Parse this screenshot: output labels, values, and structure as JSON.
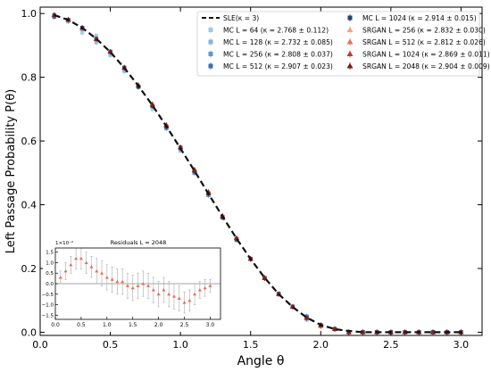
{
  "chart_data": [
    {
      "type": "scatter",
      "xlabel": "Angle θ",
      "ylabel": "Left Passage Probability P(θ)",
      "xlim": [
        0.0,
        3.15
      ],
      "ylim": [
        -0.01,
        1.02
      ],
      "xticks": [
        "0.0",
        "0.5",
        "1.0",
        "1.5",
        "2.0",
        "2.5",
        "3.0"
      ],
      "yticks": [
        "0.0",
        "0.2",
        "0.4",
        "0.6",
        "0.8",
        "1.0"
      ],
      "grid": false,
      "legend_position": "top-right",
      "x": [
        0.1,
        0.2,
        0.3,
        0.4,
        0.5,
        0.6,
        0.7,
        0.8,
        0.9,
        1.0,
        1.1,
        1.2,
        1.3,
        1.4,
        1.5,
        1.6,
        1.7,
        1.8,
        1.9,
        2.0,
        2.1,
        2.2,
        2.3,
        2.4,
        2.5,
        2.6,
        2.7,
        2.8,
        2.9,
        3.0
      ],
      "reference": {
        "name": "SLE(κ = 3)",
        "color": "#111111",
        "values": [
          0.995,
          0.98,
          0.955,
          0.921,
          0.879,
          0.829,
          0.773,
          0.712,
          0.646,
          0.577,
          0.506,
          0.434,
          0.363,
          0.294,
          0.23,
          0.171,
          0.12,
          0.079,
          0.046,
          0.023,
          0.01,
          0.004,
          0.0,
          0.0,
          0.0,
          0.0,
          0.0,
          0.0,
          0.0,
          0.0
        ]
      },
      "series": [
        {
          "name": "MC L = 64 (κ = 2.768 ± 0.112)",
          "color": "#9ec9ea",
          "values": [
            0.99,
            0.98,
            0.94,
            0.93,
            0.88,
            0.82,
            0.77,
            0.7,
            0.64,
            0.58,
            0.5,
            0.43,
            0.36,
            0.29,
            0.23,
            0.17,
            0.12,
            0.08,
            0.05,
            0.02,
            0.01,
            0.0,
            0.0,
            0.0,
            0.0,
            0.0,
            0.0,
            0.0,
            0.0,
            0.0
          ]
        },
        {
          "name": "MC L = 128 (κ = 2.732 ± 0.085)",
          "color": "#83b5df",
          "values": [
            0.99,
            0.975,
            0.95,
            0.91,
            0.87,
            0.82,
            0.77,
            0.71,
            0.64,
            0.57,
            0.5,
            0.43,
            0.36,
            0.29,
            0.23,
            0.17,
            0.12,
            0.08,
            0.04,
            0.02,
            0.01,
            0.0,
            0.0,
            0.0,
            0.0,
            0.0,
            0.0,
            0.0,
            0.0,
            0.0
          ]
        },
        {
          "name": "MC L = 256 (κ = 2.808 ± 0.037)",
          "color": "#5e97cc",
          "values": [
            0.99,
            0.98,
            0.955,
            0.92,
            0.88,
            0.83,
            0.77,
            0.71,
            0.64,
            0.58,
            0.5,
            0.43,
            0.36,
            0.29,
            0.23,
            0.17,
            0.12,
            0.08,
            0.05,
            0.02,
            0.01,
            0.0,
            0.0,
            0.0,
            0.0,
            0.0,
            0.0,
            0.0,
            0.0,
            0.0
          ]
        },
        {
          "name": "MC L = 512 (κ = 2.907 ± 0.023)",
          "color": "#3a6fae",
          "values": [
            0.99,
            0.98,
            0.955,
            0.92,
            0.88,
            0.83,
            0.77,
            0.71,
            0.645,
            0.58,
            0.505,
            0.435,
            0.36,
            0.29,
            0.23,
            0.17,
            0.12,
            0.08,
            0.045,
            0.02,
            0.01,
            0.0,
            0.0,
            0.0,
            0.0,
            0.0,
            0.0,
            0.0,
            0.0,
            0.0
          ]
        },
        {
          "name": "MC L = 1024 (κ = 2.914 ± 0.015)",
          "color": "#23456f",
          "values": [
            0.995,
            0.98,
            0.955,
            0.92,
            0.88,
            0.83,
            0.77,
            0.71,
            0.645,
            0.577,
            0.505,
            0.435,
            0.362,
            0.293,
            0.23,
            0.17,
            0.12,
            0.08,
            0.046,
            0.023,
            0.01,
            0.0,
            0.0,
            0.0,
            0.0,
            0.0,
            0.0,
            0.0,
            0.0,
            0.0
          ]
        },
        {
          "name": "SRGAN L = 256 (κ = 2.832 ± 0.030)",
          "color": "#f2a58c",
          "values": [
            0.995,
            0.98,
            0.955,
            0.92,
            0.88,
            0.83,
            0.775,
            0.715,
            0.65,
            0.58,
            0.51,
            0.44,
            0.365,
            0.295,
            0.23,
            0.17,
            0.12,
            0.08,
            0.045,
            0.02,
            0.01,
            0.0,
            0.0,
            0.0,
            0.0,
            0.0,
            0.0,
            0.0,
            0.0,
            0.0
          ]
        },
        {
          "name": "SRGAN L = 512 (κ = 2.812 ± 0.026)",
          "color": "#e0705a",
          "values": [
            0.995,
            0.98,
            0.955,
            0.92,
            0.88,
            0.83,
            0.775,
            0.715,
            0.65,
            0.58,
            0.51,
            0.44,
            0.365,
            0.295,
            0.23,
            0.17,
            0.12,
            0.08,
            0.045,
            0.02,
            0.01,
            0.0,
            0.0,
            0.0,
            0.0,
            0.0,
            0.0,
            0.0,
            0.0,
            0.0
          ]
        },
        {
          "name": "SRGAN L = 1024 (κ = 2.869 ± 0.011)",
          "color": "#c0392b",
          "values": [
            0.995,
            0.98,
            0.955,
            0.92,
            0.88,
            0.83,
            0.775,
            0.715,
            0.65,
            0.58,
            0.51,
            0.44,
            0.365,
            0.295,
            0.23,
            0.17,
            0.12,
            0.08,
            0.045,
            0.02,
            0.01,
            0.0,
            0.0,
            0.0,
            0.0,
            0.0,
            0.0,
            0.0,
            0.0,
            0.0
          ]
        },
        {
          "name": "SRGAN L = 2048 (κ = 2.904 ± 0.009)",
          "color": "#7a1a14",
          "values": [
            0.995,
            0.98,
            0.955,
            0.92,
            0.88,
            0.83,
            0.775,
            0.714,
            0.648,
            0.58,
            0.508,
            0.437,
            0.364,
            0.295,
            0.23,
            0.17,
            0.12,
            0.08,
            0.045,
            0.022,
            0.01,
            0.0,
            0.0,
            0.0,
            0.0,
            0.0,
            0.0,
            0.0,
            0.0,
            0.0
          ]
        }
      ]
    },
    {
      "type": "scatter",
      "title": "Residuals L = 2048",
      "multiplier": "1×10⁻²",
      "xlim": [
        0.0,
        3.2
      ],
      "ylim": [
        -1.7,
        1.7
      ],
      "xticks": [
        "0.0",
        "0.5",
        "1.0",
        "1.5",
        "2.0",
        "2.5",
        "3.0"
      ],
      "yticks": [
        "1.5",
        "1.0",
        "0.5",
        "0.0",
        "−0.5",
        "−1.0",
        "−1.5"
      ],
      "x": [
        0.1,
        0.2,
        0.3,
        0.4,
        0.5,
        0.6,
        0.7,
        0.8,
        0.9,
        1.0,
        1.1,
        1.2,
        1.3,
        1.4,
        1.5,
        1.6,
        1.7,
        1.8,
        1.9,
        2.0,
        2.1,
        2.2,
        2.3,
        2.4,
        2.5,
        2.6,
        2.7,
        2.8,
        2.9,
        3.0
      ],
      "values": [
        0.3,
        0.6,
        0.9,
        1.2,
        1.2,
        1.0,
        0.8,
        0.6,
        0.5,
        0.3,
        0.2,
        0.1,
        0.1,
        -0.1,
        -0.2,
        -0.1,
        0.0,
        -0.1,
        -0.3,
        -0.5,
        -0.3,
        -0.5,
        -0.6,
        -0.7,
        -0.9,
        -0.8,
        -0.5,
        -0.3,
        -0.2,
        -0.1
      ],
      "errors": [
        0.3,
        0.4,
        0.4,
        0.5,
        0.5,
        0.5,
        0.5,
        0.6,
        0.6,
        0.6,
        0.6,
        0.6,
        0.6,
        0.6,
        0.6,
        0.6,
        0.6,
        0.6,
        0.6,
        0.6,
        0.6,
        0.6,
        0.6,
        0.6,
        0.5,
        0.5,
        0.5,
        0.4,
        0.4,
        0.3
      ],
      "color": "#e0705a"
    }
  ]
}
